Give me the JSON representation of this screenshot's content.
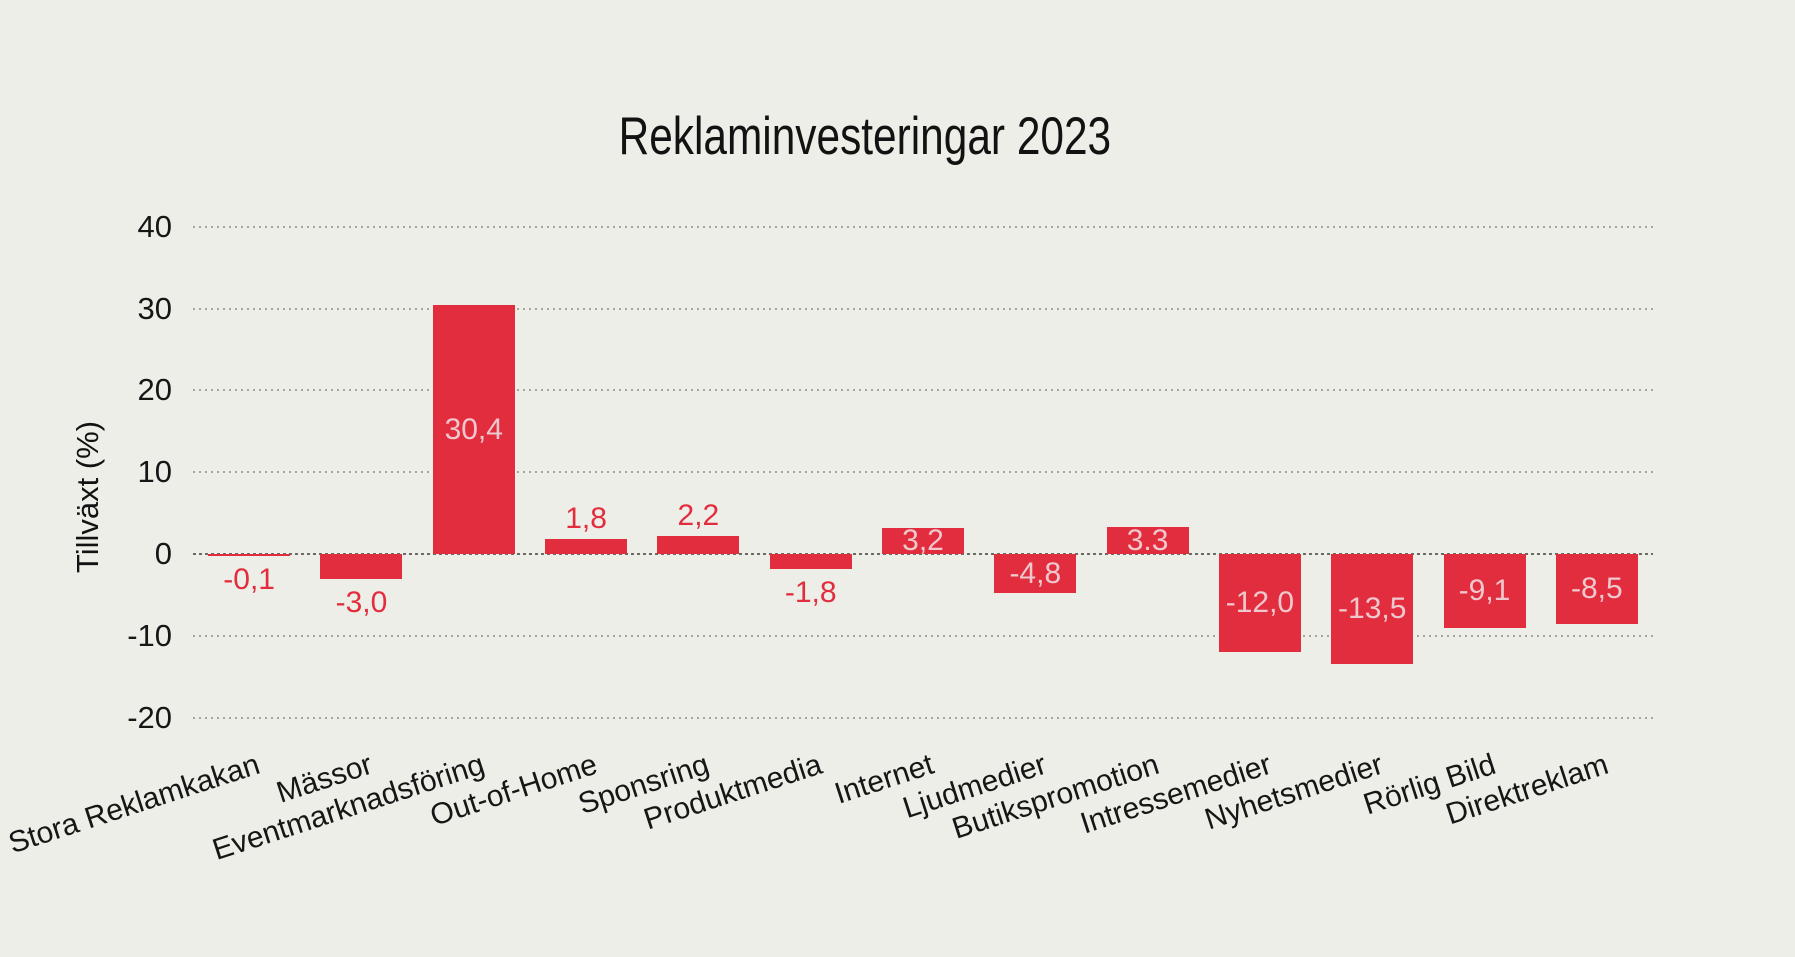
{
  "chart_data": {
    "type": "bar",
    "title": "Reklaminvesteringar 2023",
    "ylabel": "Tillväxt (%)",
    "xlabel": "",
    "legend": "none",
    "grid": "horizontal-dotted",
    "categories": [
      "Stora Reklamkakan",
      "Mässor",
      "Eventmarknadsföring",
      "Out-of-Home",
      "Sponsring",
      "Produktmedia",
      "Internet",
      "Ljudmedier",
      "Butikspromotion",
      "Intressemedier",
      "Nyhetsmedier",
      "Rörlig Bild",
      "Direktreklam"
    ],
    "values": [
      -0.1,
      -3.0,
      30.4,
      1.8,
      2.2,
      -1.8,
      3.2,
      -4.8,
      3.3,
      -12.0,
      -13.5,
      -9.1,
      -8.5
    ],
    "value_labels": [
      "-0,1",
      "-3,0",
      "30,4",
      "1,8",
      "2,2",
      "-1,8",
      "3,2",
      "-4,8",
      "3.3",
      "-12,0",
      "-13,5",
      "-9,1",
      "-8,5"
    ],
    "value_label_position": [
      "outside",
      "outside",
      "inside",
      "outside",
      "outside",
      "outside",
      "inside",
      "inside",
      "inside",
      "inside",
      "inside",
      "inside",
      "inside"
    ],
    "yticks": [
      40,
      30,
      20,
      10,
      0,
      -10,
      -20
    ],
    "ytick_labels": [
      "40",
      "30",
      "20",
      "10",
      "0",
      "-10",
      "-20"
    ],
    "ylim": [
      -25,
      45
    ],
    "colors": {
      "background": "#EEEEE8",
      "bar": "#E22D3E",
      "value_label_inside": "#EFC8CD",
      "value_label_outside": "#E22D3E",
      "grid": "#A6A69D",
      "zero_line": "#6B6A63",
      "text": "#161616"
    }
  }
}
